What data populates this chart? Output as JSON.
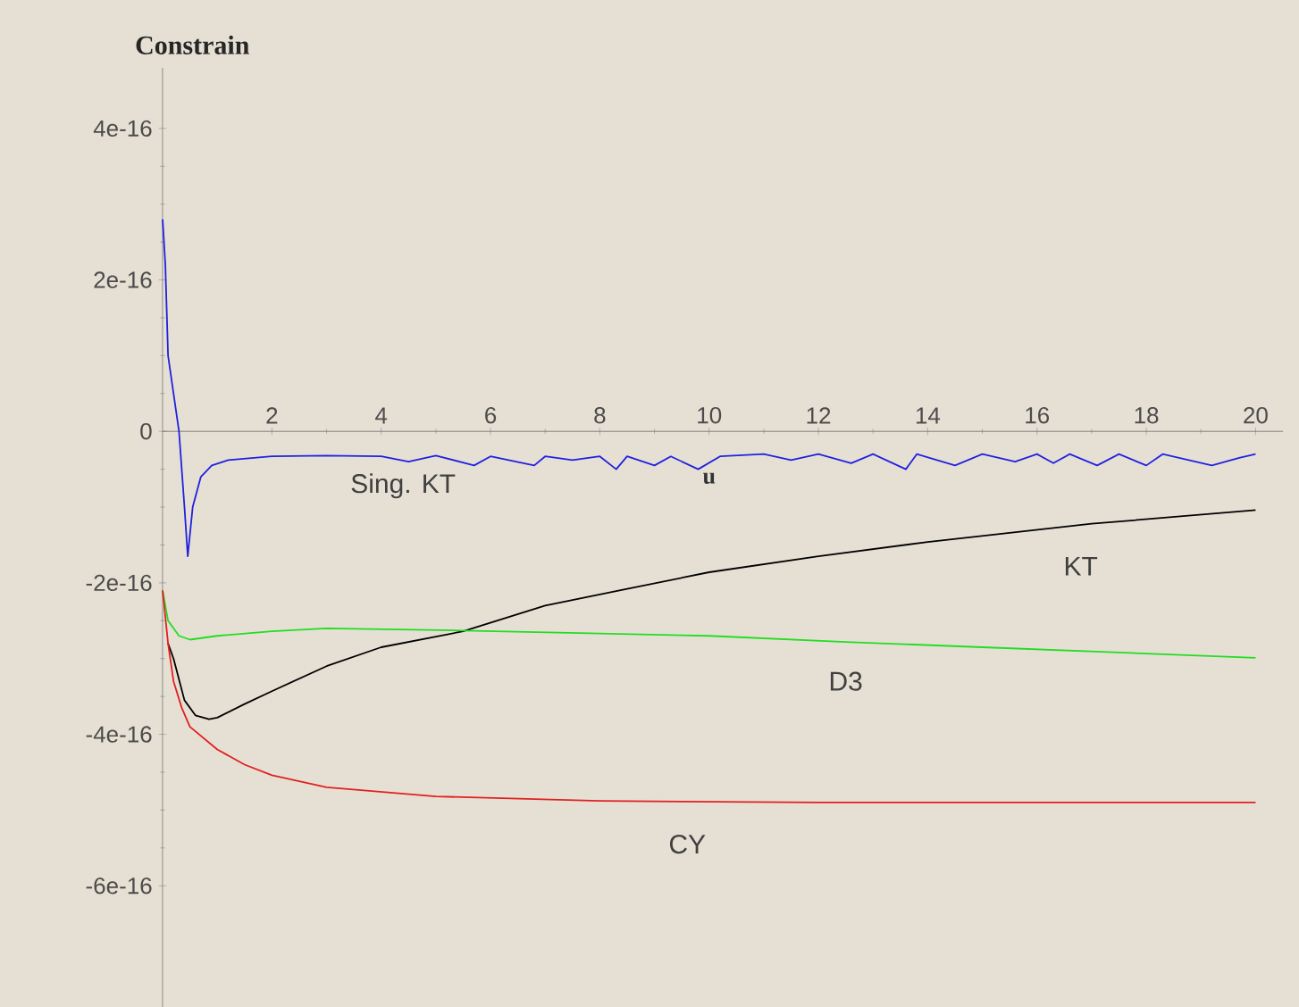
{
  "chart_data": {
    "type": "line",
    "xlabel": "u",
    "ylabel": "Constrain",
    "xlim": [
      0,
      20.5
    ],
    "ylim": [
      -7.6e-16,
      4.8e-16
    ],
    "xticks": [
      2,
      4,
      6,
      8,
      10,
      12,
      14,
      16,
      18,
      20
    ],
    "yticks": [
      4e-16,
      2e-16,
      0,
      -2e-16,
      -4e-16,
      -6e-16
    ],
    "legend": false,
    "grid": false,
    "marker": "none",
    "line_style": "solid",
    "series": [
      {
        "name": "Sing. KT",
        "color": "#2020e0",
        "x": [
          0,
          0.05,
          0.1,
          0.2,
          0.3,
          0.4,
          0.46,
          0.55,
          0.7,
          0.9,
          1.2,
          2,
          3,
          4,
          4.5,
          5,
          5.7,
          6,
          6.8,
          7,
          7.5,
          8,
          8.3,
          8.5,
          9,
          9.3,
          9.8,
          10.2,
          11,
          11.5,
          12,
          12.6,
          13,
          13.6,
          13.8,
          14.5,
          15,
          15.6,
          16,
          16.3,
          16.6,
          17.1,
          17.5,
          18,
          18.3,
          19.2,
          19.7,
          20
        ],
        "values": [
          2.8e-16,
          2.2e-16,
          1e-16,
          5e-17,
          0.0,
          -1e-16,
          -1.65e-16,
          -1e-16,
          -6e-17,
          -4.5e-17,
          -3.8e-17,
          -3.3e-17,
          -3.2e-17,
          -3.3e-17,
          -4e-17,
          -3.2e-17,
          -4.5e-17,
          -3.3e-17,
          -4.5e-17,
          -3.3e-17,
          -3.8e-17,
          -3.3e-17,
          -5e-17,
          -3.3e-17,
          -4.5e-17,
          -3.3e-17,
          -5e-17,
          -3.3e-17,
          -3e-17,
          -3.8e-17,
          -3e-17,
          -4.2e-17,
          -3e-17,
          -5e-17,
          -3e-17,
          -4.5e-17,
          -3e-17,
          -4e-17,
          -3e-17,
          -4.2e-17,
          -3e-17,
          -4.5e-17,
          -3e-17,
          -4.5e-17,
          -3e-17,
          -4.5e-17,
          -3.5e-17,
          -3e-17
        ]
      },
      {
        "name": "KT",
        "color": "#000000",
        "x": [
          0.1,
          0.2,
          0.4,
          0.6,
          0.85,
          1,
          1.5,
          2,
          3,
          4,
          5.5,
          7,
          8.5,
          10,
          12,
          14,
          17,
          20
        ],
        "values": [
          -2.8e-16,
          -3e-16,
          -3.55e-16,
          -3.75e-16,
          -3.8e-16,
          -3.78e-16,
          -3.6e-16,
          -3.43e-16,
          -3.1e-16,
          -2.85e-16,
          -2.64e-16,
          -2.3e-16,
          -2.08e-16,
          -1.86e-16,
          -1.65e-16,
          -1.46e-16,
          -1.22e-16,
          -1.04e-16
        ]
      },
      {
        "name": "D3",
        "color": "#22dd22",
        "x": [
          0,
          0.1,
          0.3,
          0.5,
          1,
          2,
          3,
          5.5,
          8,
          10,
          12.5,
          15,
          17.5,
          20
        ],
        "values": [
          -2.1e-16,
          -2.5e-16,
          -2.7e-16,
          -2.75e-16,
          -2.7e-16,
          -2.64e-16,
          -2.6e-16,
          -2.63e-16,
          -2.67e-16,
          -2.7e-16,
          -2.78e-16,
          -2.85e-16,
          -2.92e-16,
          -2.99e-16
        ]
      },
      {
        "name": "CY",
        "color": "#e02020",
        "x": [
          0,
          0.1,
          0.2,
          0.35,
          0.5,
          0.75,
          1,
          1.5,
          2,
          3,
          5,
          8,
          12,
          16,
          20
        ],
        "values": [
          -2.1e-16,
          -2.8e-16,
          -3.3e-16,
          -3.65e-16,
          -3.9e-16,
          -4.05e-16,
          -4.2e-16,
          -4.4e-16,
          -4.54e-16,
          -4.7e-16,
          -4.82e-16,
          -4.88e-16,
          -4.9e-16,
          -4.9e-16,
          -4.9e-16
        ]
      }
    ]
  }
}
